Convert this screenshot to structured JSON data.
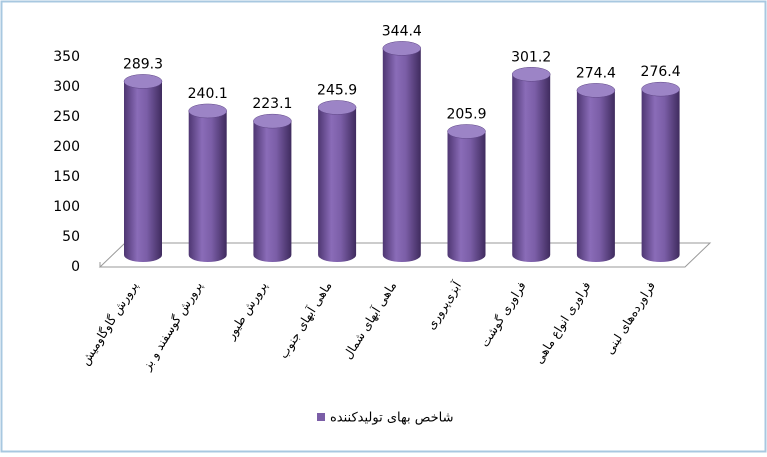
{
  "chart_data": {
    "type": "bar3d",
    "categories": [
      "پرورش گاوگاومیش",
      "پرورش گوسفند و بز",
      "پرورش طیور",
      "ماهی آبهای جنوب",
      "ماهی آبهای شمال",
      "آبزی‌پروری",
      "فراوری گوشت",
      "فراوری انواع ماهی",
      "فراورده‌های لبنی"
    ],
    "series": [
      {
        "name": "شاخص بهای تولیدکننده",
        "color": "#7b5ea7",
        "values": [
          289.3,
          240.1,
          223.1,
          245.9,
          344.4,
          205.9,
          301.2,
          274.4,
          276.4
        ]
      }
    ],
    "ylim": [
      0,
      350
    ],
    "yticks": [
      0,
      50,
      100,
      150,
      200,
      250,
      300,
      350
    ],
    "grid": false,
    "legend": "bottom"
  }
}
